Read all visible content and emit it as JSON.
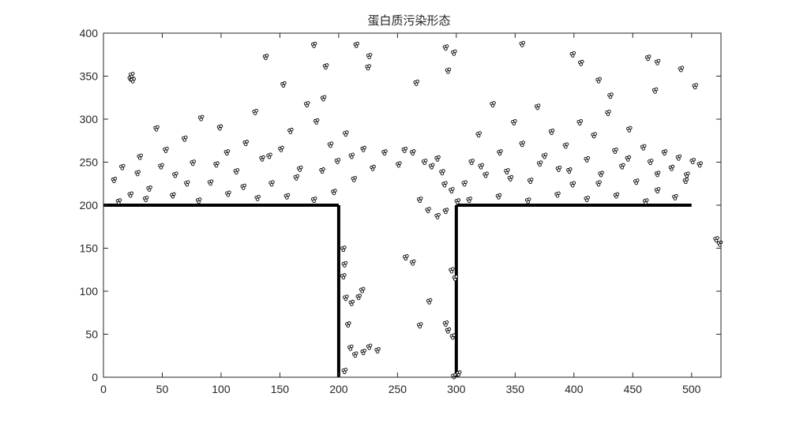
{
  "chart_data": {
    "type": "scatter",
    "title": "蛋白质污染形态",
    "xlabel": "",
    "ylabel": "",
    "xlim": [
      0,
      525
    ],
    "ylim": [
      0,
      400
    ],
    "x_ticks": [
      0,
      50,
      100,
      150,
      200,
      250,
      300,
      350,
      400,
      450,
      500
    ],
    "y_ticks": [
      0,
      50,
      100,
      150,
      200,
      250,
      300,
      350,
      400
    ],
    "grid": false,
    "marker": "circle",
    "marker_color": "#000000",
    "walls": [
      {
        "x": [
          0,
          200
        ],
        "y": [
          200,
          200
        ]
      },
      {
        "x": [
          200,
          200
        ],
        "y": [
          0,
          200
        ]
      },
      {
        "x": [
          300,
          300
        ],
        "y": [
          0,
          200
        ]
      },
      {
        "x": [
          300,
          500
        ],
        "y": [
          200,
          200
        ]
      }
    ],
    "points": [
      [
        22,
        348
      ],
      [
        24,
        346
      ],
      [
        23,
        352
      ],
      [
        137,
        373
      ],
      [
        152,
        341
      ],
      [
        178,
        387
      ],
      [
        188,
        362
      ],
      [
        214,
        387
      ],
      [
        225,
        374
      ],
      [
        224,
        361
      ],
      [
        265,
        343
      ],
      [
        290,
        384
      ],
      [
        292,
        357
      ],
      [
        297,
        378
      ],
      [
        355,
        388
      ],
      [
        398,
        376
      ],
      [
        405,
        366
      ],
      [
        420,
        346
      ],
      [
        430,
        328
      ],
      [
        462,
        372
      ],
      [
        470,
        367
      ],
      [
        468,
        334
      ],
      [
        490,
        359
      ],
      [
        502,
        339
      ],
      [
        8,
        230
      ],
      [
        15,
        245
      ],
      [
        22,
        213
      ],
      [
        30,
        257
      ],
      [
        38,
        220
      ],
      [
        44,
        290
      ],
      [
        52,
        265
      ],
      [
        60,
        236
      ],
      [
        68,
        278
      ],
      [
        75,
        250
      ],
      [
        82,
        302
      ],
      [
        90,
        227
      ],
      [
        98,
        291
      ],
      [
        104,
        262
      ],
      [
        112,
        240
      ],
      [
        120,
        273
      ],
      [
        128,
        309
      ],
      [
        134,
        255
      ],
      [
        142,
        226
      ],
      [
        150,
        266
      ],
      [
        158,
        287
      ],
      [
        166,
        243
      ],
      [
        172,
        318
      ],
      [
        180,
        298
      ],
      [
        186,
        325
      ],
      [
        192,
        271
      ],
      [
        198,
        252
      ],
      [
        205,
        284
      ],
      [
        212,
        231
      ],
      [
        220,
        266
      ],
      [
        228,
        244
      ],
      [
        238,
        262
      ],
      [
        12,
        205
      ],
      [
        35,
        208
      ],
      [
        58,
        212
      ],
      [
        80,
        206
      ],
      [
        105,
        214
      ],
      [
        130,
        209
      ],
      [
        155,
        211
      ],
      [
        178,
        207
      ],
      [
        195,
        216
      ],
      [
        28,
        238
      ],
      [
        48,
        246
      ],
      [
        70,
        226
      ],
      [
        95,
        248
      ],
      [
        118,
        222
      ],
      [
        140,
        258
      ],
      [
        163,
        233
      ],
      [
        185,
        241
      ],
      [
        210,
        258
      ],
      [
        255,
        265
      ],
      [
        262,
        262
      ],
      [
        250,
        248
      ],
      [
        272,
        251
      ],
      [
        278,
        246
      ],
      [
        283,
        255
      ],
      [
        287,
        239
      ],
      [
        289,
        225
      ],
      [
        295,
        218
      ],
      [
        300,
        205
      ],
      [
        268,
        207
      ],
      [
        275,
        195
      ],
      [
        283,
        188
      ],
      [
        290,
        194
      ],
      [
        306,
        226
      ],
      [
        312,
        251
      ],
      [
        318,
        283
      ],
      [
        324,
        236
      ],
      [
        330,
        318
      ],
      [
        336,
        262
      ],
      [
        342,
        240
      ],
      [
        348,
        297
      ],
      [
        355,
        272
      ],
      [
        362,
        229
      ],
      [
        368,
        315
      ],
      [
        374,
        258
      ],
      [
        380,
        286
      ],
      [
        386,
        243
      ],
      [
        392,
        270
      ],
      [
        398,
        225
      ],
      [
        404,
        297
      ],
      [
        410,
        254
      ],
      [
        416,
        282
      ],
      [
        422,
        237
      ],
      [
        428,
        308
      ],
      [
        434,
        264
      ],
      [
        440,
        246
      ],
      [
        446,
        289
      ],
      [
        452,
        228
      ],
      [
        458,
        268
      ],
      [
        464,
        251
      ],
      [
        470,
        237
      ],
      [
        476,
        262
      ],
      [
        482,
        244
      ],
      [
        488,
        256
      ],
      [
        494,
        229
      ],
      [
        500,
        252
      ],
      [
        506,
        248
      ],
      [
        310,
        207
      ],
      [
        335,
        211
      ],
      [
        360,
        206
      ],
      [
        385,
        213
      ],
      [
        410,
        208
      ],
      [
        435,
        212
      ],
      [
        460,
        205
      ],
      [
        485,
        210
      ],
      [
        320,
        246
      ],
      [
        345,
        232
      ],
      [
        370,
        249
      ],
      [
        395,
        241
      ],
      [
        420,
        226
      ],
      [
        445,
        255
      ],
      [
        470,
        218
      ],
      [
        495,
        236
      ],
      [
        203,
        150
      ],
      [
        204,
        132
      ],
      [
        203,
        118
      ],
      [
        205,
        93
      ],
      [
        210,
        87
      ],
      [
        216,
        94
      ],
      [
        219,
        102
      ],
      [
        207,
        62
      ],
      [
        209,
        35
      ],
      [
        213,
        27
      ],
      [
        220,
        30
      ],
      [
        225,
        36
      ],
      [
        232,
        32
      ],
      [
        204,
        8
      ],
      [
        256,
        140
      ],
      [
        262,
        134
      ],
      [
        276,
        89
      ],
      [
        268,
        61
      ],
      [
        290,
        63
      ],
      [
        292,
        55
      ],
      [
        296,
        48
      ],
      [
        295,
        125
      ],
      [
        298,
        116
      ],
      [
        297,
        2
      ],
      [
        301,
        5
      ],
      [
        520,
        161
      ],
      [
        523,
        156
      ]
    ]
  }
}
